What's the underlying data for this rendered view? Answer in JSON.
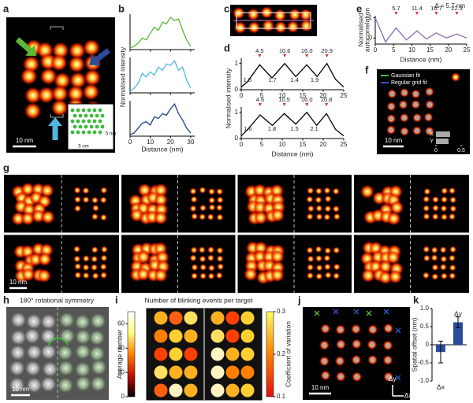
{
  "figure": {
    "panel_labels": [
      "a",
      "b",
      "c",
      "d",
      "e",
      "f",
      "g",
      "h",
      "i",
      "j",
      "k"
    ],
    "a": {
      "scale_bar": "10 nm",
      "inset_x": "5 nm",
      "inset_y": "5 nm"
    },
    "f": {
      "legend": [
        "Gaussian fit",
        "Regular grid fit"
      ],
      "scale_bar": "10 nm"
    },
    "g": {
      "scale_bar": "10 nm"
    },
    "h": {
      "title": "180° rotational symmetry",
      "scale_bar": "10 nm"
    },
    "i": {
      "title": "Number of blinking events per target"
    },
    "j": {
      "scale_bar": "10 nm",
      "dy": "Δy",
      "dx": "Δx"
    }
  },
  "chart_data": [
    {
      "type": "line",
      "xlabel": "Distance (nm)",
      "ylabel": "Normalised intensity",
      "x": [
        0,
        2,
        4,
        6,
        8,
        10,
        12,
        14,
        16,
        18,
        20,
        22,
        24,
        26,
        28,
        30
      ],
      "xlim": [
        0,
        32
      ],
      "xticks": [
        0,
        10,
        20,
        30
      ],
      "ylim": [
        0,
        1.1
      ],
      "series": [
        {
          "color": "#5bb832",
          "values": [
            0.05,
            0.1,
            0.2,
            0.35,
            0.3,
            0.5,
            0.7,
            0.6,
            0.85,
            0.8,
            1.0,
            0.9,
            0.95,
            0.6,
            0.3,
            0.1
          ]
        },
        {
          "color": "#4fb8e0",
          "values": [
            0.05,
            0.15,
            0.3,
            0.6,
            0.5,
            0.65,
            0.55,
            0.8,
            0.7,
            0.9,
            0.85,
            1.0,
            0.7,
            0.8,
            0.4,
            0.15
          ]
        },
        {
          "color": "#1f3f8f",
          "values": [
            0.05,
            0.1,
            0.25,
            0.4,
            0.45,
            0.35,
            0.6,
            0.55,
            0.7,
            0.65,
            0.85,
            1.0,
            0.7,
            0.5,
            0.25,
            0.1
          ]
        }
      ]
    },
    {
      "type": "line",
      "xlabel": "Distance (nm)",
      "ylabel": "Normalised intensity",
      "xlim": [
        0,
        25
      ],
      "xticks": [
        0,
        5,
        10,
        15,
        20,
        25
      ],
      "ylim": [
        0,
        1.2
      ],
      "yticks": [
        0,
        1
      ],
      "series": [
        {
          "color": "#000000",
          "x": [
            0,
            1.5,
            4.5,
            7.5,
            10.6,
            13.3,
            16,
            18.5,
            20.9,
            23,
            25
          ],
          "values": [
            0.1,
            0.3,
            0.95,
            0.45,
            1.0,
            0.5,
            0.95,
            0.5,
            1.0,
            0.4,
            0.1
          ],
          "peaks": [
            {
              "x": 4.5,
              "label": "4.5"
            },
            {
              "x": 10.6,
              "label": "10.6"
            },
            {
              "x": 16.0,
              "label": "16.0"
            },
            {
              "x": 20.9,
              "label": "20.9"
            }
          ],
          "spacings": [
            "1.5",
            "1.7",
            "1.4",
            "1.9"
          ]
        },
        {
          "color": "#000000",
          "x": [
            0,
            1.6,
            4.6,
            7.6,
            10.5,
            13.3,
            16,
            18.4,
            20.8,
            23,
            25
          ],
          "values": [
            0.1,
            0.35,
            0.9,
            0.5,
            0.95,
            0.55,
            1.0,
            0.5,
            0.95,
            0.35,
            0.1
          ],
          "peaks": [
            {
              "x": 4.6,
              "label": "4.6"
            },
            {
              "x": 10.5,
              "label": "10.5"
            },
            {
              "x": 16.0,
              "label": "16.0"
            },
            {
              "x": 20.8,
              "label": "20.8"
            }
          ],
          "spacings": [
            "1.6",
            "1.8",
            "1.5",
            "2.1"
          ]
        }
      ]
    },
    {
      "type": "line",
      "xlabel": "Distance (nm)",
      "ylabel": [
        "Normalised",
        "autocorrelation"
      ],
      "annotation": "Δ = 5.7 nm",
      "xlim": [
        0,
        25
      ],
      "xticks": [
        0,
        5,
        10,
        15,
        20,
        25
      ],
      "ylim": [
        -0.3,
        1.1
      ],
      "yticks": [
        0,
        1
      ],
      "series": [
        {
          "color": "#8a6db0",
          "x": [
            0,
            2.8,
            5.7,
            8.5,
            11.4,
            14,
            16.7,
            19.5,
            22.3,
            25
          ],
          "values": [
            1,
            -0.2,
            0.5,
            -0.1,
            0.35,
            -0.05,
            0.25,
            0,
            0.2,
            0
          ],
          "peaks": [
            {
              "x": 5.7,
              "label": "5.7"
            },
            {
              "x": 11.4,
              "label": "11.4"
            },
            {
              "x": 16.7,
              "label": "16.7"
            },
            {
              "x": 22.3,
              "label": "22.3"
            }
          ]
        }
      ]
    },
    {
      "type": "bar",
      "horizontal": true,
      "categories": [
        "X",
        "Y"
      ],
      "values": [
        0.28,
        0.25
      ],
      "xlim": [
        0,
        0.5
      ],
      "xticks": [
        0,
        0.5
      ],
      "color": "#aaaaaa"
    },
    {
      "type": "bar",
      "ylabel": "Spatial offset (nm)",
      "categories": [
        "Δx",
        "Δy"
      ],
      "values": [
        -0.2,
        0.62
      ],
      "errors": [
        0.3,
        0.15
      ],
      "ylim": [
        -1,
        1
      ],
      "yticks": [
        {
          "value": -1,
          "label": "-1.0"
        },
        -0.5,
        0,
        0.5,
        {
          "value": 1,
          "label": "1.0"
        }
      ],
      "color": "#2b4c9b"
    },
    {
      "type": "colorbar",
      "ylabel": "Average number",
      "ylim": [
        0,
        70
      ],
      "yticks": [
        0,
        20,
        40,
        60
      ],
      "colors": [
        "#000000",
        "#c01000",
        "#ff8000",
        "#ffff80",
        "#ffffff"
      ]
    },
    {
      "type": "colorbar",
      "ylabel": "Coefficient of variation",
      "ylim": [
        0.1,
        0.3
      ],
      "yticks": [
        0.1,
        0.2,
        0.3
      ],
      "colors": [
        "#e01010",
        "#ff8000",
        "#ffff60"
      ]
    }
  ]
}
